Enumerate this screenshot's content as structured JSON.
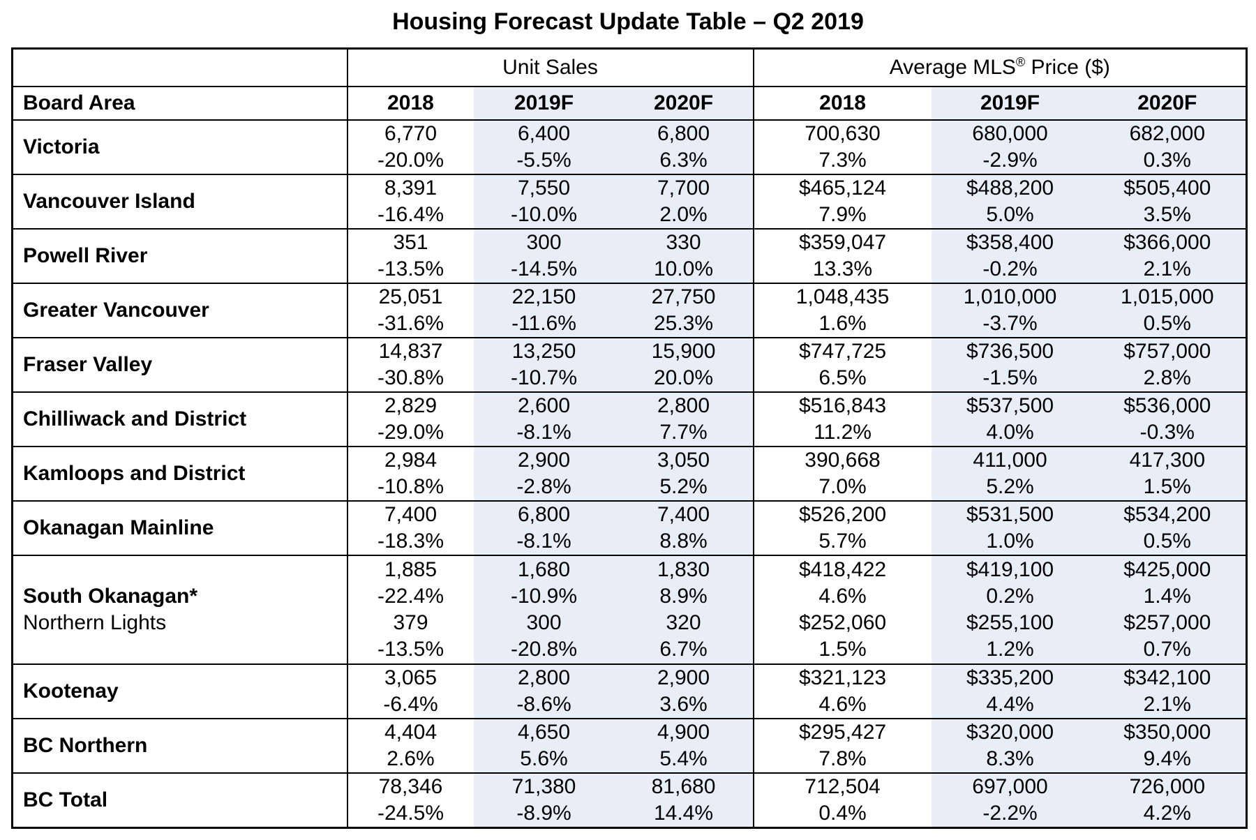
{
  "title": "Housing Forecast Update Table – Q2 2019",
  "colors": {
    "highlight": "#E8EEF8"
  },
  "table": {
    "group_headers": {
      "unit_sales": "Unit Sales",
      "price_prefix": "Average MLS",
      "price_reg": "®",
      "price_suffix": " Price ($)"
    },
    "col_headers": {
      "board_area": "Board Area",
      "y2018": "2018",
      "y2019f": "2019F",
      "y2020f": "2020F"
    },
    "rows": [
      {
        "area": "Victoria",
        "unit_sales": {
          "y2018": [
            "6,770",
            "-20.0%"
          ],
          "y2019f": [
            "6,400",
            "-5.5%"
          ],
          "y2020f": [
            "6,800",
            "6.3%"
          ]
        },
        "avg_price": {
          "y2018": [
            "700,630",
            "7.3%"
          ],
          "y2019f": [
            "680,000",
            "-2.9%"
          ],
          "y2020f": [
            "682,000",
            "0.3%"
          ]
        }
      },
      {
        "area": "Vancouver Island",
        "unit_sales": {
          "y2018": [
            "8,391",
            "-16.4%"
          ],
          "y2019f": [
            "7,550",
            "-10.0%"
          ],
          "y2020f": [
            "7,700",
            "2.0%"
          ]
        },
        "avg_price": {
          "y2018": [
            "$465,124",
            "7.9%"
          ],
          "y2019f": [
            "$488,200",
            "5.0%"
          ],
          "y2020f": [
            "$505,400",
            "3.5%"
          ]
        }
      },
      {
        "area": "Powell River",
        "unit_sales": {
          "y2018": [
            "351",
            "-13.5%"
          ],
          "y2019f": [
            "300",
            "-14.5%"
          ],
          "y2020f": [
            "330",
            "10.0%"
          ]
        },
        "avg_price": {
          "y2018": [
            "$359,047",
            "13.3%"
          ],
          "y2019f": [
            "$358,400",
            "-0.2%"
          ],
          "y2020f": [
            "$366,000",
            "2.1%"
          ]
        }
      },
      {
        "area": "Greater Vancouver",
        "unit_sales": {
          "y2018": [
            "25,051",
            "-31.6%"
          ],
          "y2019f": [
            "22,150",
            "-11.6%"
          ],
          "y2020f": [
            "27,750",
            "25.3%"
          ]
        },
        "avg_price": {
          "y2018": [
            "1,048,435",
            "1.6%"
          ],
          "y2019f": [
            "1,010,000",
            "-3.7%"
          ],
          "y2020f": [
            "1,015,000",
            "0.5%"
          ]
        }
      },
      {
        "area": "Fraser Valley",
        "unit_sales": {
          "y2018": [
            "14,837",
            "-30.8%"
          ],
          "y2019f": [
            "13,250",
            "-10.7%"
          ],
          "y2020f": [
            "15,900",
            "20.0%"
          ]
        },
        "avg_price": {
          "y2018": [
            "$747,725",
            "6.5%"
          ],
          "y2019f": [
            "$736,500",
            "-1.5%"
          ],
          "y2020f": [
            "$757,000",
            "2.8%"
          ]
        }
      },
      {
        "area": "Chilliwack and District",
        "unit_sales": {
          "y2018": [
            "2,829",
            "-29.0%"
          ],
          "y2019f": [
            "2,600",
            "-8.1%"
          ],
          "y2020f": [
            "2,800",
            "7.7%"
          ]
        },
        "avg_price": {
          "y2018": [
            "$516,843",
            "11.2%"
          ],
          "y2019f": [
            "$537,500",
            "4.0%"
          ],
          "y2020f": [
            "$536,000",
            "-0.3%"
          ]
        }
      },
      {
        "area": "Kamloops and District",
        "unit_sales": {
          "y2018": [
            "2,984",
            "-10.8%"
          ],
          "y2019f": [
            "2,900",
            "-2.8%"
          ],
          "y2020f": [
            "3,050",
            "5.2%"
          ]
        },
        "avg_price": {
          "y2018": [
            "390,668",
            "7.0%"
          ],
          "y2019f": [
            "411,000",
            "5.2%"
          ],
          "y2020f": [
            "417,300",
            "1.5%"
          ]
        }
      },
      {
        "area": "Okanagan Mainline",
        "unit_sales": {
          "y2018": [
            "7,400",
            "-18.3%"
          ],
          "y2019f": [
            "6,800",
            "-8.1%"
          ],
          "y2020f": [
            "7,400",
            "8.8%"
          ]
        },
        "avg_price": {
          "y2018": [
            "$526,200",
            "5.7%"
          ],
          "y2019f": [
            "$531,500",
            "1.0%"
          ],
          "y2020f": [
            "$534,200",
            "0.5%"
          ]
        }
      },
      {
        "area": "South Okanagan*",
        "area_secondary": "Northern Lights",
        "unit_sales": {
          "y2018": [
            "1,885",
            "-22.4%",
            "379",
            "-13.5%"
          ],
          "y2019f": [
            "1,680",
            "-10.9%",
            "300",
            "-20.8%"
          ],
          "y2020f": [
            "1,830",
            "8.9%",
            "320",
            "6.7%"
          ]
        },
        "avg_price": {
          "y2018": [
            "$418,422",
            "4.6%",
            "$252,060",
            "1.5%"
          ],
          "y2019f": [
            "$419,100",
            "0.2%",
            "$255,100",
            "1.2%"
          ],
          "y2020f": [
            "$425,000",
            "1.4%",
            "$257,000",
            "0.7%"
          ]
        }
      },
      {
        "area": "Kootenay",
        "unit_sales": {
          "y2018": [
            "3,065",
            "-6.4%"
          ],
          "y2019f": [
            "2,800",
            "-8.6%"
          ],
          "y2020f": [
            "2,900",
            "3.6%"
          ]
        },
        "avg_price": {
          "y2018": [
            "$321,123",
            "4.6%"
          ],
          "y2019f": [
            "$335,200",
            "4.4%"
          ],
          "y2020f": [
            "$342,100",
            "2.1%"
          ]
        }
      },
      {
        "area": "BC Northern",
        "unit_sales": {
          "y2018": [
            "4,404",
            "2.6%"
          ],
          "y2019f": [
            "4,650",
            "5.6%"
          ],
          "y2020f": [
            "4,900",
            "5.4%"
          ]
        },
        "avg_price": {
          "y2018": [
            "$295,427",
            "7.8%"
          ],
          "y2019f": [
            "$320,000",
            "8.3%"
          ],
          "y2020f": [
            "$350,000",
            "9.4%"
          ]
        }
      },
      {
        "area": "BC Total",
        "unit_sales": {
          "y2018": [
            "78,346",
            "-24.5%"
          ],
          "y2019f": [
            "71,380",
            "-8.9%"
          ],
          "y2020f": [
            "81,680",
            "14.4%"
          ]
        },
        "avg_price": {
          "y2018": [
            "712,504",
            "0.4%"
          ],
          "y2019f": [
            "697,000",
            "-2.2%"
          ],
          "y2020f": [
            "726,000",
            "4.2%"
          ]
        }
      }
    ]
  }
}
